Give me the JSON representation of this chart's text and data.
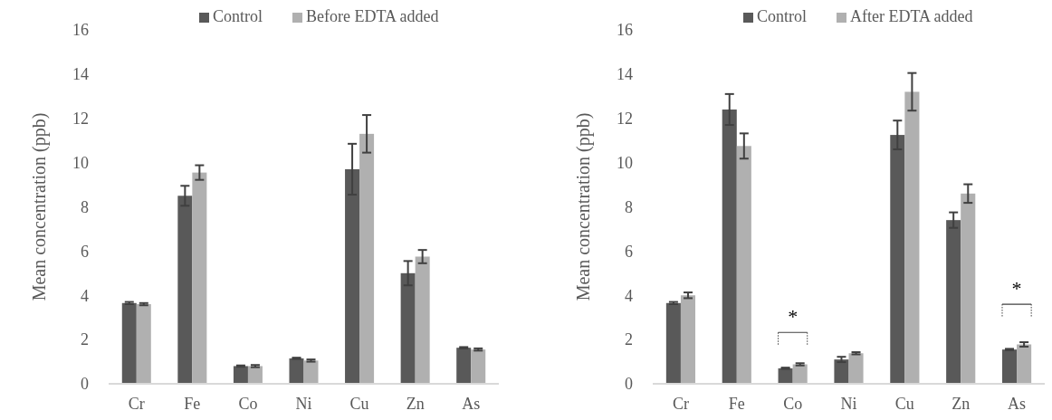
{
  "chart_data": [
    {
      "type": "bar",
      "ylabel": "Mean concentration (ppb)",
      "categories": [
        "Cr",
        "Fe",
        "Co",
        "Ni",
        "Cu",
        "Zn",
        "As"
      ],
      "series": [
        {
          "name": "Control",
          "color": "#595959",
          "values": [
            3.65,
            8.5,
            0.8,
            1.15,
            9.7,
            5.0,
            1.63
          ],
          "errors": [
            0.05,
            0.45,
            0.03,
            0.03,
            1.15,
            0.55,
            0.03
          ]
        },
        {
          "name": "Before EDTA added",
          "color": "#b0b0b0",
          "values": [
            3.6,
            9.55,
            0.8,
            1.05,
            11.3,
            5.75,
            1.55
          ],
          "errors": [
            0.05,
            0.33,
            0.05,
            0.05,
            0.85,
            0.3,
            0.05
          ]
        }
      ],
      "ylim": [
        0,
        16
      ],
      "yticks": [
        0,
        2,
        4,
        6,
        8,
        10,
        12,
        14,
        16
      ],
      "legend": "top",
      "grid": false
    },
    {
      "type": "bar",
      "ylabel": "Mean concentration (ppb)",
      "categories": [
        "Cr",
        "Fe",
        "Co",
        "Ni",
        "Cu",
        "Zn",
        "As"
      ],
      "series": [
        {
          "name": "Control",
          "color": "#595959",
          "values": [
            3.65,
            12.4,
            0.7,
            1.1,
            11.25,
            7.4,
            1.55
          ],
          "errors": [
            0.05,
            0.7,
            0.03,
            0.12,
            0.65,
            0.35,
            0.03
          ]
        },
        {
          "name": "After EDTA added",
          "color": "#b0b0b0",
          "values": [
            4.0,
            10.75,
            0.88,
            1.38,
            13.2,
            8.6,
            1.78
          ],
          "errors": [
            0.13,
            0.57,
            0.05,
            0.05,
            0.85,
            0.42,
            0.1
          ]
        }
      ],
      "ylim": [
        0,
        16
      ],
      "yticks": [
        0,
        2,
        4,
        6,
        8,
        10,
        12,
        14,
        16
      ],
      "legend": "top",
      "grid": false,
      "annotations": [
        "*",
        "*"
      ]
    }
  ]
}
